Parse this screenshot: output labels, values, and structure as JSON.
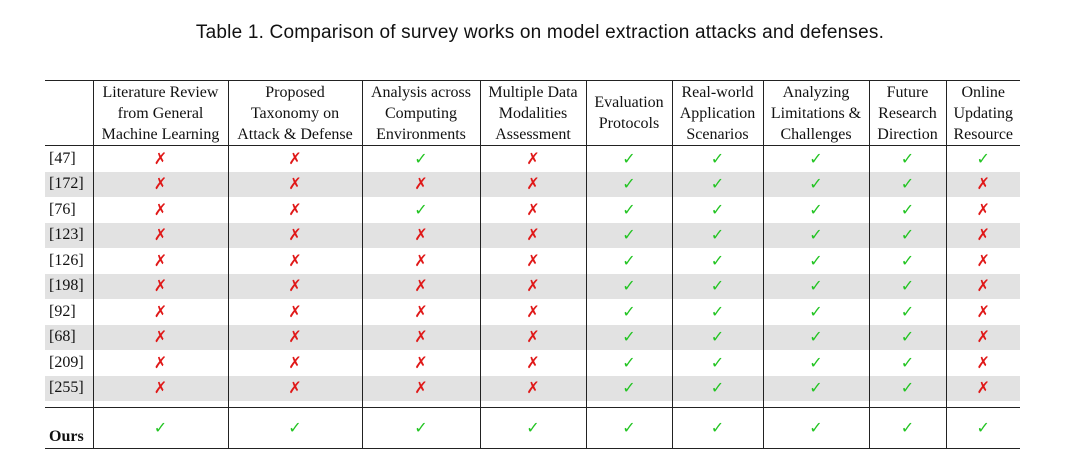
{
  "caption": "Table 1.  Comparison of survey works on model extraction attacks and defenses.",
  "columns": [
    [
      "Literature Review",
      "from General",
      "Machine Learning"
    ],
    [
      "Proposed",
      "Taxonomy on",
      "Attack & Defense"
    ],
    [
      "Analysis across",
      "Computing",
      "Environments"
    ],
    [
      "Multiple Data",
      "Modalities",
      "Assessment"
    ],
    [
      "Evaluation",
      "Protocols"
    ],
    [
      "Real-world",
      "Application",
      "Scenarios"
    ],
    [
      "Analyzing",
      "Limitations &",
      "Challenges"
    ],
    [
      "Future",
      "Research",
      "Direction"
    ],
    [
      "Online",
      "Updating",
      "Resource"
    ]
  ],
  "rows": [
    {
      "ref": "[47]",
      "marks": [
        false,
        false,
        true,
        false,
        true,
        true,
        true,
        true,
        true
      ]
    },
    {
      "ref": "[172]",
      "marks": [
        false,
        false,
        false,
        false,
        true,
        true,
        true,
        true,
        false
      ]
    },
    {
      "ref": "[76]",
      "marks": [
        false,
        false,
        true,
        false,
        true,
        true,
        true,
        true,
        false
      ]
    },
    {
      "ref": "[123]",
      "marks": [
        false,
        false,
        false,
        false,
        true,
        true,
        true,
        true,
        false
      ]
    },
    {
      "ref": "[126]",
      "marks": [
        false,
        false,
        false,
        false,
        true,
        true,
        true,
        true,
        false
      ]
    },
    {
      "ref": "[198]",
      "marks": [
        false,
        false,
        false,
        false,
        true,
        true,
        true,
        true,
        false
      ]
    },
    {
      "ref": "[92]",
      "marks": [
        false,
        false,
        false,
        false,
        true,
        true,
        true,
        true,
        false
      ]
    },
    {
      "ref": "[68]",
      "marks": [
        false,
        false,
        false,
        false,
        true,
        true,
        true,
        true,
        false
      ]
    },
    {
      "ref": "[209]",
      "marks": [
        false,
        false,
        false,
        false,
        true,
        true,
        true,
        true,
        false
      ]
    },
    {
      "ref": "[255]",
      "marks": [
        false,
        false,
        false,
        false,
        true,
        true,
        true,
        true,
        false
      ]
    }
  ],
  "ours": {
    "ref": "Ours",
    "marks": [
      true,
      true,
      true,
      true,
      true,
      true,
      true,
      true,
      true
    ]
  },
  "symbols": {
    "yes": "✓",
    "no": "✗"
  },
  "colors": {
    "yes": "#22c422",
    "no": "#e01818",
    "shade": "#e2e2e2"
  }
}
